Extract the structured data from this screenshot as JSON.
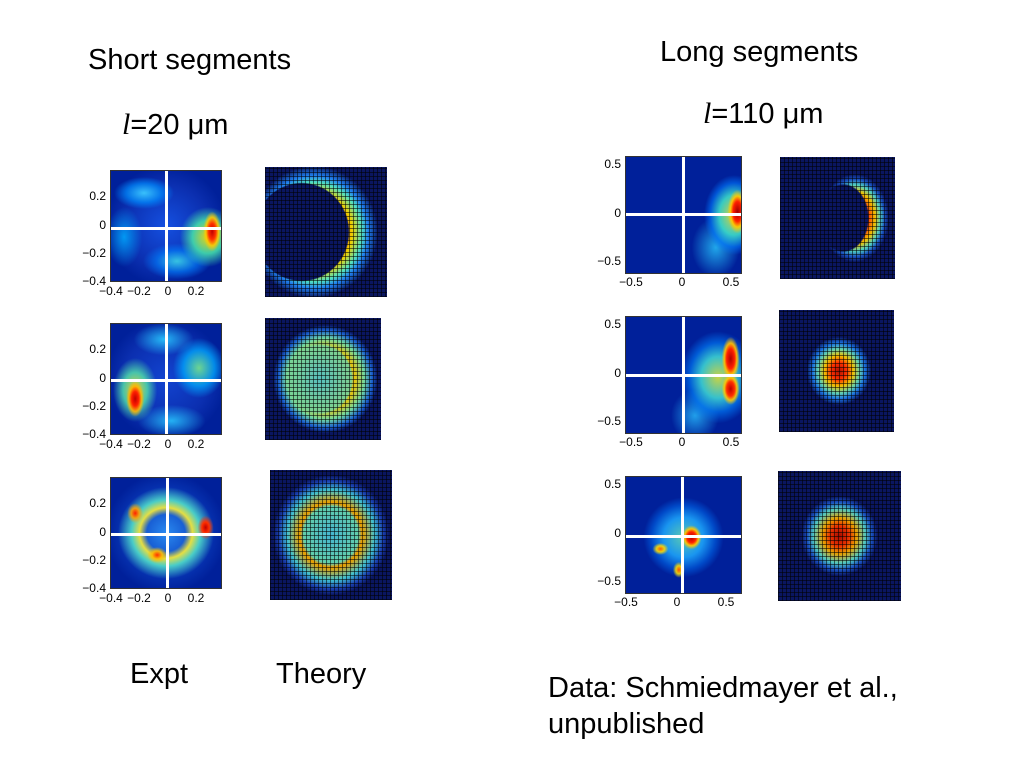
{
  "left": {
    "heading": "Short segments",
    "param_symbol": "l",
    "param_value": "=20 μm"
  },
  "right": {
    "heading": "Long segments",
    "param_symbol": "l",
    "param_value": "=110 μm"
  },
  "captions": {
    "expt": "Expt",
    "theory": "Theory"
  },
  "credit": {
    "line1": "Data: Schmiedmayer et al.,",
    "line2": "unpublished"
  },
  "left_ticks": {
    "y": [
      "0.2",
      "0",
      "−0.2",
      "−0.4"
    ],
    "x": [
      "−0.4",
      "−0.2",
      "0",
      "0.2"
    ]
  },
  "right_ticks": {
    "y": [
      "0.5",
      "0",
      "−0.5"
    ],
    "x": [
      "−0.5",
      "0",
      "0.5"
    ]
  },
  "colors": {
    "colormap": "jet",
    "crosshair": "#ffffff",
    "background": "#ffffff"
  }
}
